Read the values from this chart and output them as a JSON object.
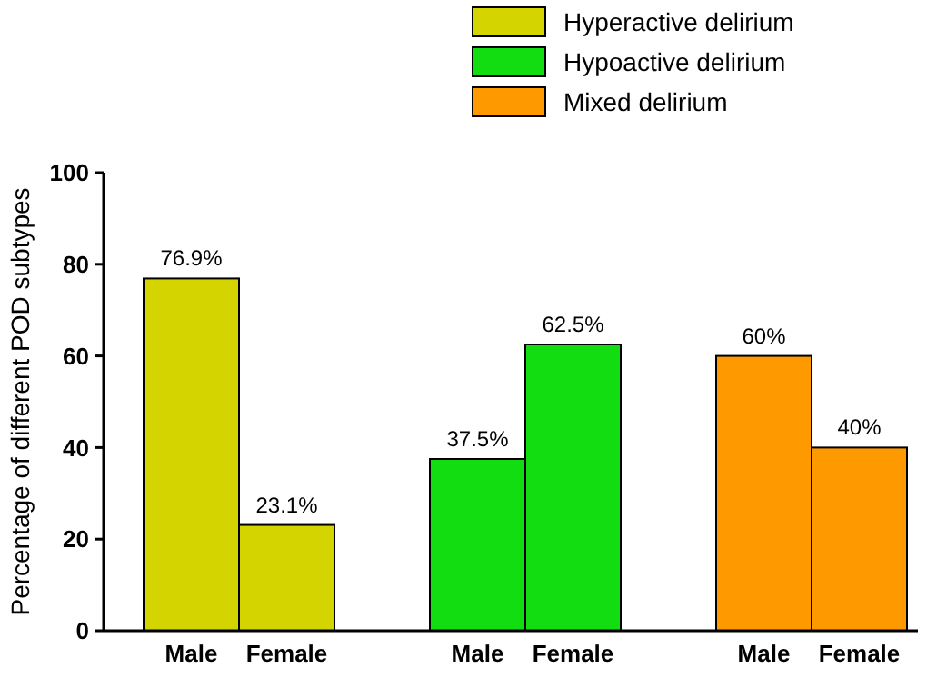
{
  "chart_data": {
    "type": "bar",
    "ylabel": "Percentage of different POD subtypes",
    "categories": [
      "Male",
      "Female",
      null,
      "Male",
      "Female",
      null,
      "Male",
      "Female"
    ],
    "series": [
      {
        "name": "Hyperactive delirium",
        "color": "#d4d400",
        "values": [
          76.9,
          23.1,
          null,
          null,
          null,
          null,
          null,
          null
        ],
        "value_labels": [
          "76.9%",
          "23.1%",
          null,
          null,
          null,
          null,
          null,
          null
        ]
      },
      {
        "name": "Hypoactive delirium",
        "color": "#11dd11",
        "values": [
          null,
          null,
          null,
          37.5,
          62.5,
          null,
          null,
          null
        ],
        "value_labels": [
          null,
          null,
          null,
          "37.5%",
          "62.5%",
          null,
          null,
          null
        ]
      },
      {
        "name": "Mixed delirium",
        "color": "#ff9900",
        "values": [
          null,
          null,
          null,
          null,
          null,
          null,
          60,
          40
        ],
        "value_labels": [
          null,
          null,
          null,
          null,
          null,
          null,
          "60%",
          "40%"
        ]
      }
    ],
    "ylim": [
      0,
      100
    ],
    "yticks": [
      0,
      20,
      40,
      60,
      80,
      100
    ],
    "grid": false,
    "legend": "top right"
  }
}
